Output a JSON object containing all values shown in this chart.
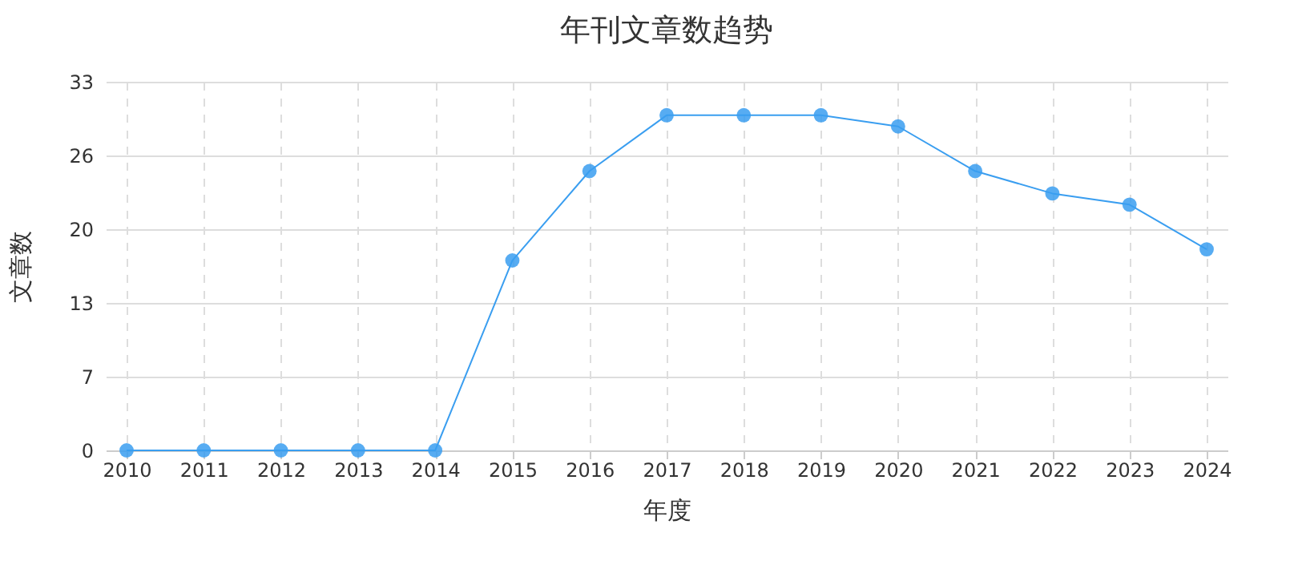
{
  "chart_data": {
    "type": "line",
    "title": "年刊文章数趋势",
    "xlabel": "年度",
    "ylabel": "文章数",
    "categories": [
      "2010",
      "2011",
      "2012",
      "2013",
      "2014",
      "2015",
      "2016",
      "2017",
      "2018",
      "2019",
      "2020",
      "2021",
      "2022",
      "2023",
      "2024"
    ],
    "series": [
      {
        "color": "#3a9ef0",
        "values": [
          0,
          0,
          0,
          0,
          0,
          17,
          25,
          30,
          30,
          30,
          29,
          25,
          23,
          22,
          18
        ]
      }
    ],
    "ylim": [
      0,
      33
    ],
    "yticks": [
      0,
      {
        "value": 6.6,
        "label": "7"
      },
      {
        "value": 13.2,
        "label": "13"
      },
      {
        "value": 19.8,
        "label": "20"
      },
      {
        "value": 26.4,
        "label": "26"
      },
      33
    ],
    "grid": true,
    "marker": "circle",
    "line_style": "solid"
  }
}
